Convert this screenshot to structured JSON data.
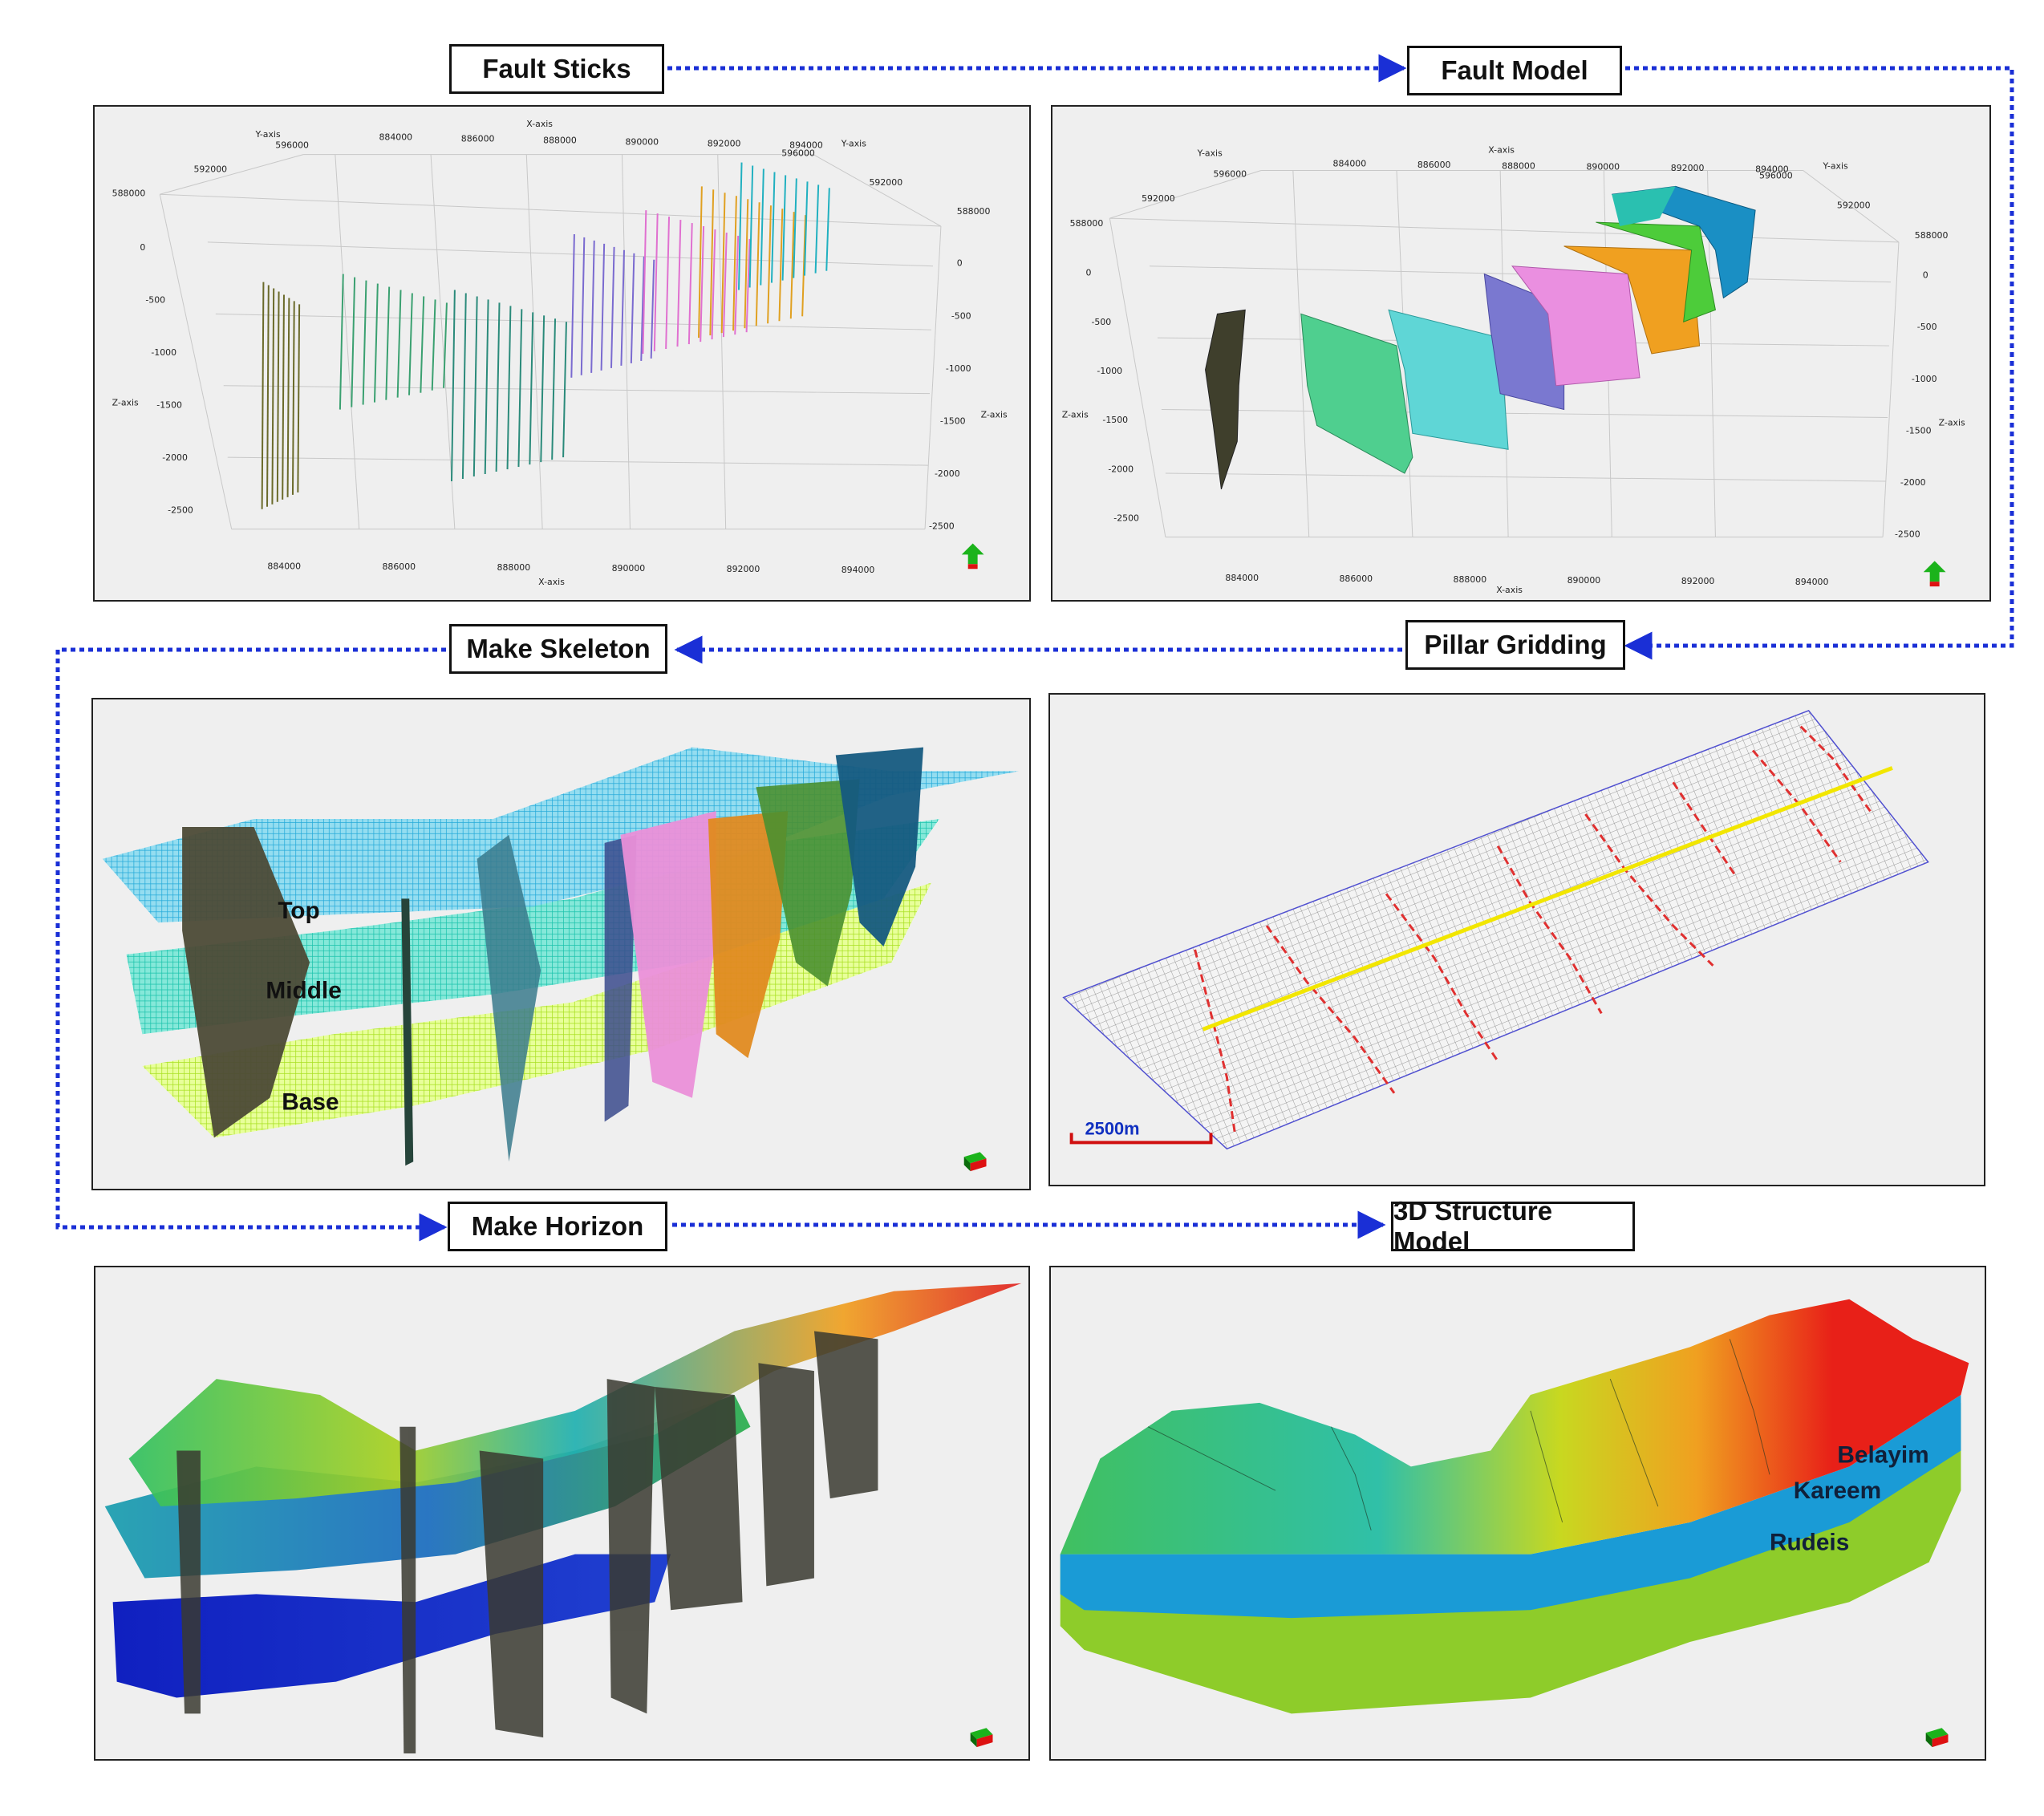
{
  "colors": {
    "arrow": "#1a2fd6",
    "box_border": "#111111",
    "panel_bg": "#efefef"
  },
  "steps": {
    "fault_sticks": "Fault Sticks",
    "fault_model": "Fault Model",
    "pillar_gridding": "Pillar Gridding",
    "make_skeleton": "Make Skeleton",
    "make_horizon": "Make Horizon",
    "structure_model": "3D Structure Model"
  },
  "fault_sticks_panel": {
    "axis_titles": {
      "x_top": "X-axis",
      "y_left": "Y-axis",
      "y_right": "Y-axis",
      "z_left": "Z-axis",
      "z_right": "Z-axis",
      "x_bottom": "X-axis"
    },
    "x_ticks_top": [
      "884000",
      "886000",
      "888000",
      "890000",
      "892000",
      "894000"
    ],
    "y_ticks_left": [
      "596000",
      "592000",
      "588000"
    ],
    "y_ticks_right": [
      "596000",
      "592000",
      "588000"
    ],
    "z_ticks_left": [
      "0",
      "-500",
      "-1000",
      "-1500",
      "-2000",
      "-2500"
    ],
    "z_ticks_right": [
      "0",
      "-500",
      "-1000",
      "-1500",
      "-2000",
      "-2500"
    ],
    "x_ticks_bottom": [
      "884000",
      "886000",
      "888000",
      "890000",
      "892000",
      "894000"
    ]
  },
  "fault_model_panel": {
    "axis_titles": {
      "x_top": "X-axis",
      "y_left": "Y-axis",
      "y_right": "Y-axis",
      "z_left": "Z-axis",
      "z_right": "Z-axis",
      "x_bottom": "X-axis"
    },
    "x_ticks_top": [
      "884000",
      "886000",
      "888000",
      "890000",
      "892000",
      "894000"
    ],
    "y_ticks_left": [
      "596000",
      "592000",
      "588000"
    ],
    "y_ticks_right": [
      "596000",
      "592000",
      "588000"
    ],
    "z_ticks_left": [
      "0",
      "-500",
      "-1000",
      "-1500",
      "-2000",
      "-2500"
    ],
    "z_ticks_right": [
      "0",
      "-500",
      "-1000",
      "-1500",
      "-2000",
      "-2500"
    ],
    "x_ticks_bottom": [
      "884000",
      "886000",
      "888000",
      "890000",
      "892000",
      "894000"
    ]
  },
  "skeleton_panel": {
    "labels": [
      "Top",
      "Middle",
      "Base"
    ]
  },
  "pillar_panel": {
    "scale_label": "2500m"
  },
  "structure_panel": {
    "labels": [
      "Belayim",
      "Kareem",
      "Rudeis"
    ]
  }
}
